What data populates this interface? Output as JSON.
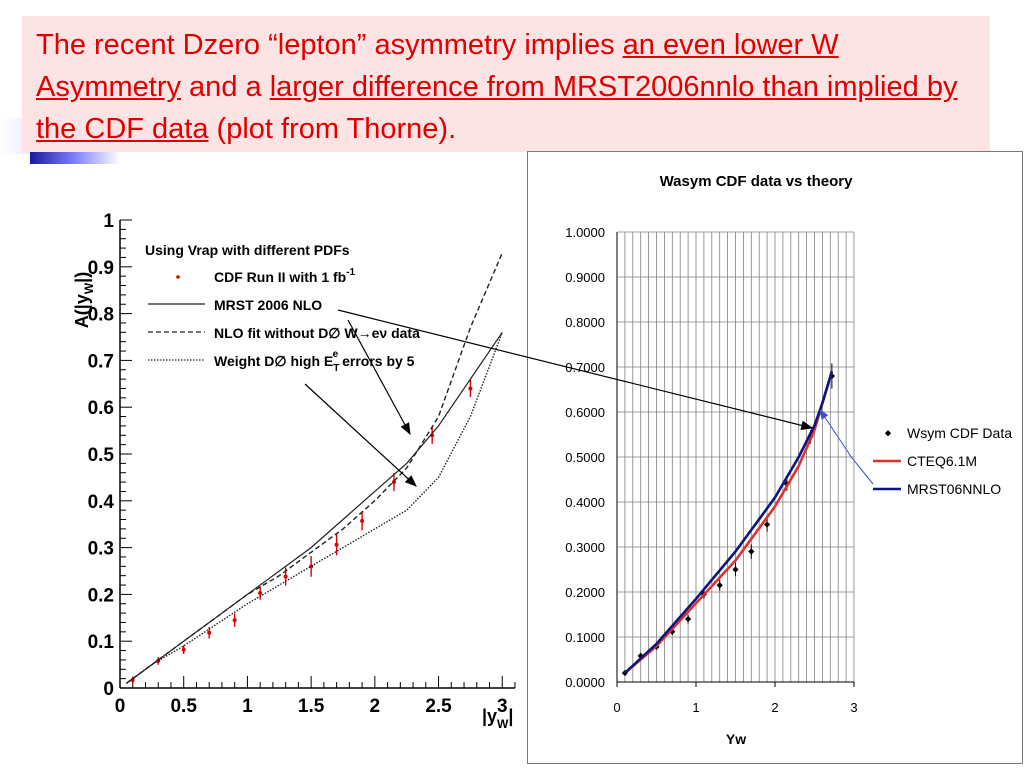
{
  "title": {
    "part1": "The recent Dzero “lepton” asymmetry implies ",
    "link1": "an even lower W Asymmetry",
    "part2": " and a ",
    "link2": "larger difference from MRST2006nnlo than implied by the CDF data",
    "part3": "  (plot from Thorne).",
    "color": "#e00000"
  },
  "chart_data": [
    {
      "type": "scatter",
      "title": "Using Vrap with different PDFs",
      "ylabel": "A(|yW|)",
      "xlabel": "|yW|",
      "xlim": [
        0,
        3.1
      ],
      "ylim": [
        0,
        1
      ],
      "xticks": [
        "0",
        "0.5",
        "1",
        "1.5",
        "2",
        "2.5",
        "3"
      ],
      "yticks": [
        "0",
        "0.1",
        "0.2",
        "0.3",
        "0.4",
        "0.5",
        "0.6",
        "0.7",
        "0.8",
        "0.9",
        "1"
      ],
      "legend": [
        {
          "label": "CDF Run II with 1 fb",
          "sup": "-1"
        },
        {
          "label": "MRST 2006 NLO"
        },
        {
          "label": "NLO fit without D∅ W→eν data"
        },
        {
          "label": "Weight D∅ high E",
          "sub": "T",
          "sup": "e",
          "suffix": " errors by 5"
        }
      ],
      "series": [
        {
          "name": "CDF Run II with 1 fb-1",
          "style": "points",
          "color": "#e00000",
          "x": [
            0.1,
            0.3,
            0.5,
            0.7,
            0.9,
            1.1,
            1.3,
            1.5,
            1.7,
            1.9,
            2.15,
            2.45,
            2.75
          ],
          "y": [
            0.017,
            0.058,
            0.082,
            0.118,
            0.145,
            0.203,
            0.238,
            0.26,
            0.306,
            0.357,
            0.44,
            0.54,
            0.64
          ],
          "err": [
            0.003,
            0.004,
            0.005,
            0.008,
            0.01,
            0.01,
            0.015,
            0.018,
            0.018,
            0.016,
            0.015,
            0.014,
            0.014
          ]
        },
        {
          "name": "MRST 2006 NLO",
          "style": "solid",
          "x": [
            0.05,
            0.25,
            0.5,
            0.75,
            1.0,
            1.25,
            1.5,
            1.75,
            2.0,
            2.25,
            2.5,
            2.75,
            3.0
          ],
          "y": [
            0.01,
            0.05,
            0.1,
            0.15,
            0.2,
            0.25,
            0.3,
            0.36,
            0.42,
            0.48,
            0.56,
            0.66,
            0.76
          ]
        },
        {
          "name": "NLO fit without D∅ W→eν data",
          "style": "dashed",
          "x": [
            0.05,
            0.25,
            0.5,
            0.75,
            1.0,
            1.25,
            1.5,
            1.75,
            2.0,
            2.25,
            2.5,
            2.75,
            3.0
          ],
          "y": [
            0.01,
            0.05,
            0.1,
            0.15,
            0.2,
            0.24,
            0.29,
            0.34,
            0.4,
            0.47,
            0.58,
            0.77,
            0.93
          ]
        },
        {
          "name": "Weight D∅ high ET errors by 5",
          "style": "dotted",
          "x": [
            0.05,
            0.25,
            0.5,
            0.75,
            1.0,
            1.25,
            1.5,
            1.75,
            2.0,
            2.25,
            2.5,
            2.75,
            3.0
          ],
          "y": [
            0.01,
            0.05,
            0.09,
            0.135,
            0.18,
            0.22,
            0.26,
            0.3,
            0.34,
            0.38,
            0.45,
            0.58,
            0.76
          ]
        }
      ]
    },
    {
      "type": "line",
      "title": "Wasym CDF data vs theory",
      "xlabel": "Yw",
      "ylabel": "",
      "xlim": [
        0,
        3
      ],
      "ylim": [
        0,
        1
      ],
      "xticks": [
        "0",
        "1",
        "2",
        "3"
      ],
      "yticks": [
        "0.0000",
        "0.1000",
        "0.2000",
        "0.3000",
        "0.4000",
        "0.5000",
        "0.6000",
        "0.7000",
        "0.8000",
        "0.9000",
        "1.0000"
      ],
      "legend_position": "right",
      "series": [
        {
          "name": "Wsym CDF Data",
          "style": "points",
          "color": "#000000",
          "x": [
            0.1,
            0.3,
            0.5,
            0.7,
            0.9,
            1.1,
            1.3,
            1.5,
            1.7,
            1.9,
            2.15,
            2.45,
            2.72
          ],
          "y": [
            0.02,
            0.058,
            0.078,
            0.112,
            0.14,
            0.195,
            0.215,
            0.25,
            0.29,
            0.35,
            0.44,
            0.545,
            0.68
          ],
          "err": [
            0.004,
            0.005,
            0.006,
            0.008,
            0.01,
            0.01,
            0.012,
            0.015,
            0.016,
            0.016,
            0.015,
            0.015,
            0.028
          ]
        },
        {
          "name": "CTEQ6.1M",
          "style": "line",
          "color": "#e0302a",
          "x": [
            0.1,
            0.5,
            1.0,
            1.5,
            2.0,
            2.3,
            2.5,
            2.6,
            2.72
          ],
          "y": [
            0.02,
            0.08,
            0.175,
            0.27,
            0.39,
            0.48,
            0.56,
            0.62,
            0.69
          ]
        },
        {
          "name": "MRST06NNLO",
          "style": "line",
          "color": "#0a1580",
          "x": [
            0.1,
            0.5,
            1.0,
            1.5,
            2.0,
            2.3,
            2.5,
            2.6,
            2.72
          ],
          "y": [
            0.02,
            0.085,
            0.185,
            0.29,
            0.41,
            0.5,
            0.57,
            0.62,
            0.69
          ]
        }
      ]
    }
  ]
}
